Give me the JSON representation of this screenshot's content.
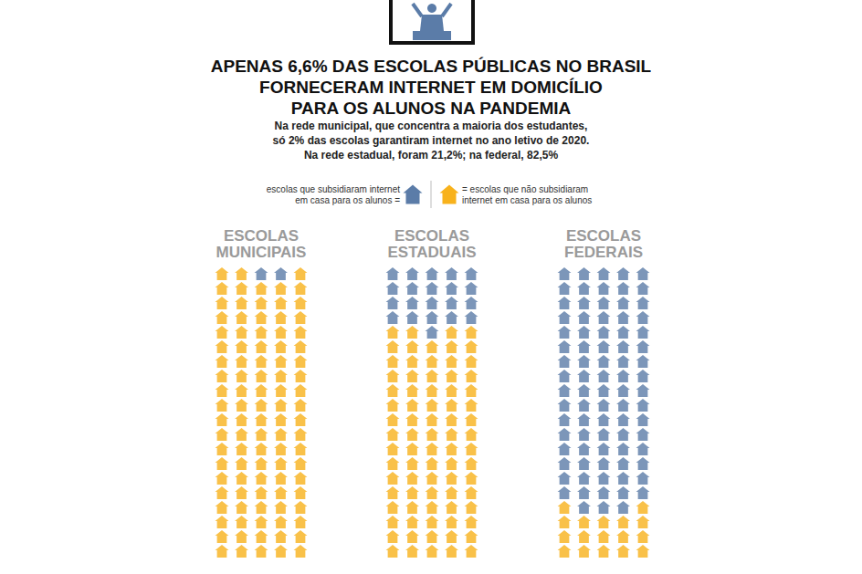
{
  "chart_data": {
    "type": "pictogram",
    "title": [
      "APENAS 6,6% DAS ESCOLAS PÚBLICAS NO BRASIL",
      "FORNECERAM INTERNET EM DOMICÍLIO",
      "PARA OS ALUNOS NA PANDEMIA"
    ],
    "subtitle": [
      "Na rede municipal, que concentra a maioria dos estudantes,",
      "só 2% das escolas garantiram internet no ano letivo de 2020.",
      "Na rede estadual, foram 21,2%; na federal, 82,5%"
    ],
    "categories": [
      "ESCOLAS MUNICIPAIS",
      "ESCOLAS ESTADUAIS",
      "ESCOLAS FEDERAIS"
    ],
    "series": [
      {
        "name": "escolas que subsidiaram internet em casa para os alunos =",
        "color": "#5b7ca8",
        "values": [
          2,
          21,
          83
        ]
      },
      {
        "name": "= escolas que não subsidiaram internet em casa para os alunos",
        "color": "#f8b21c",
        "values": [
          98,
          79,
          17
        ]
      }
    ],
    "marker": "house",
    "legend": "top",
    "tick_labels": false
  }
}
